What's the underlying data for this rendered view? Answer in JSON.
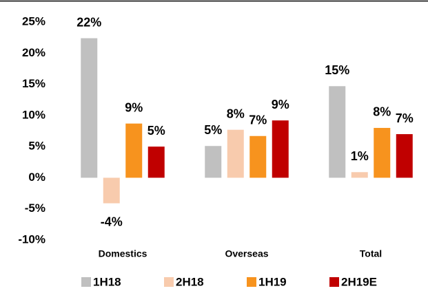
{
  "chart_data": {
    "type": "bar",
    "categories": [
      "Domestics",
      "Overseas",
      "Total"
    ],
    "series": [
      {
        "name": "1H18",
        "color": "#c0c0c0",
        "values": [
          22.4,
          5.1,
          14.7
        ],
        "value_labels": [
          "22%",
          "5%",
          "15%"
        ]
      },
      {
        "name": "2H18",
        "color": "#f8cbad",
        "values": [
          -4.1,
          7.7,
          0.9
        ],
        "value_labels": [
          "-4%",
          "8%",
          "1%"
        ]
      },
      {
        "name": "1H19",
        "color": "#f7931e",
        "values": [
          8.7,
          6.7,
          8.0
        ],
        "value_labels": [
          "9%",
          "7%",
          "8%"
        ]
      },
      {
        "name": "2H19E",
        "color": "#c00000",
        "values": [
          5.0,
          9.2,
          7.0
        ],
        "value_labels": [
          "5%",
          "9%",
          "7%"
        ]
      }
    ],
    "ylim": [
      -10,
      25
    ],
    "yticks": [
      {
        "value": -10,
        "label": "-10%"
      },
      {
        "value": -5,
        "label": "-5%"
      },
      {
        "value": 0,
        "label": "0%"
      },
      {
        "value": 5,
        "label": "5%"
      },
      {
        "value": 10,
        "label": "10%"
      },
      {
        "value": 15,
        "label": "15%"
      },
      {
        "value": 20,
        "label": "20%"
      },
      {
        "value": 25,
        "label": "25%"
      }
    ],
    "grid": false,
    "legend": "bottom"
  }
}
